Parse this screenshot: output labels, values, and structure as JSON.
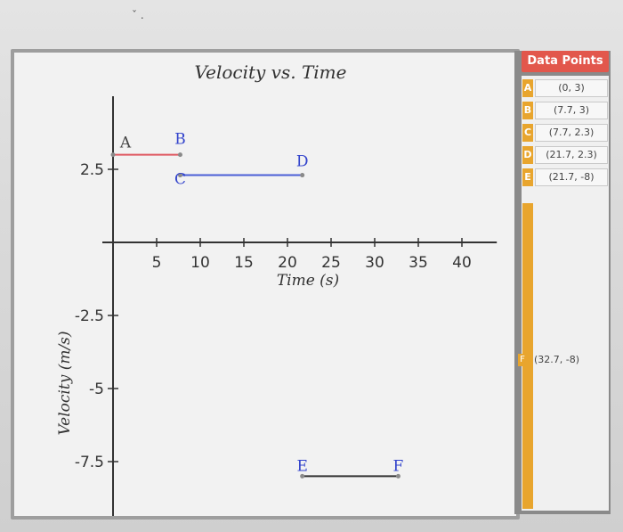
{
  "topmark": "ˇ .",
  "colors": {
    "segment_ab": "#e05a63",
    "segment_cd": "#4a5ed6",
    "segment_ef": "#333333",
    "header": "#e2574c",
    "stripe": "#e8a52e"
  },
  "panel": {
    "header": "Data Points",
    "rows": [
      {
        "letter": "A",
        "value": "(0, 3)"
      },
      {
        "letter": "B",
        "value": "(7.7, 3)"
      },
      {
        "letter": "C",
        "value": "(7.7, 2.3)"
      },
      {
        "letter": "D",
        "value": "(21.7, 2.3)"
      },
      {
        "letter": "E",
        "value": "(21.7, -8)"
      }
    ],
    "extra": {
      "letter": "F",
      "value": "(32.7, -8)"
    }
  },
  "chart_data": {
    "type": "line",
    "title": "Velocity vs. Time",
    "xlabel": "Time (s)",
    "ylabel": "Velocity (m/s)",
    "xlim": [
      0,
      44
    ],
    "ylim": [
      -9.5,
      5
    ],
    "xticks": [
      5,
      10,
      15,
      20,
      25,
      30,
      35,
      40
    ],
    "yticks": [
      2.5,
      -2.5,
      -5,
      -7.5
    ],
    "xtick_labels": [
      "5",
      "10",
      "15",
      "20",
      "25",
      "30",
      "35",
      "40"
    ],
    "ytick_labels": [
      "2.5",
      "-2.5",
      "-5",
      "-7.5"
    ],
    "points": [
      {
        "label": "A",
        "x": 0,
        "y": 3
      },
      {
        "label": "B",
        "x": 7.7,
        "y": 3
      },
      {
        "label": "C",
        "x": 7.7,
        "y": 2.3
      },
      {
        "label": "D",
        "x": 21.7,
        "y": 2.3
      },
      {
        "label": "E",
        "x": 21.7,
        "y": -8
      },
      {
        "label": "F",
        "x": 32.7,
        "y": -8
      }
    ],
    "segments": [
      {
        "from": "A",
        "to": "B",
        "color": "#e05a63"
      },
      {
        "from": "C",
        "to": "D",
        "color": "#4a5ed6"
      },
      {
        "from": "E",
        "to": "F",
        "color": "#333333"
      }
    ],
    "grid": false
  }
}
